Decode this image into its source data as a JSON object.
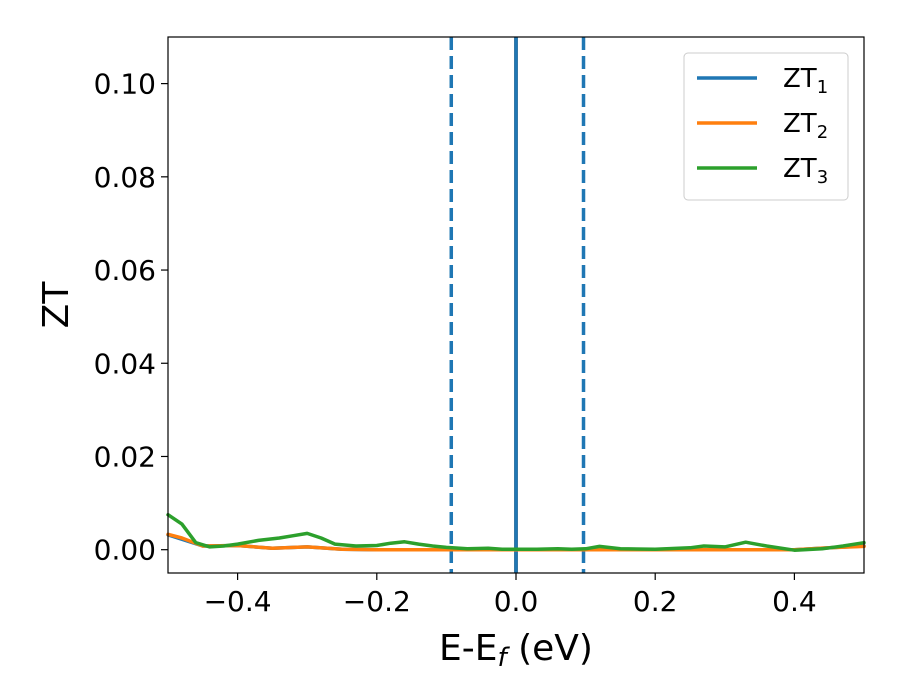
{
  "chart_data": {
    "type": "line",
    "xlabel": "E-E",
    "xlabel_sub": "f",
    "xlabel_unit": " (eV)",
    "ylabel": "ZT",
    "xlim": [
      -0.5,
      0.5
    ],
    "ylim": [
      -0.005,
      0.11
    ],
    "x_ticks": [
      -0.4,
      -0.2,
      0.0,
      0.2,
      0.4
    ],
    "x_tick_labels": [
      "−0.4",
      "−0.2",
      "0.0",
      "0.2",
      "0.4"
    ],
    "y_ticks": [
      0.0,
      0.02,
      0.04,
      0.06,
      0.08,
      0.1
    ],
    "y_tick_labels": [
      "0.00",
      "0.02",
      "0.04",
      "0.06",
      "0.08",
      "0.10"
    ],
    "grid": false,
    "legend_position": "top-right",
    "vertical_lines": [
      {
        "x": -0.093,
        "style": "dashed",
        "color": "#1f77b4"
      },
      {
        "x": 0.0,
        "style": "solid",
        "color": "#000000"
      },
      {
        "x": 0.0,
        "style": "solid",
        "color": "#1f77b4"
      },
      {
        "x": 0.097,
        "style": "dashed",
        "color": "#1f77b4"
      }
    ],
    "series": [
      {
        "name": "ZT",
        "subscript": "1",
        "color": "#1f77b4",
        "x": [
          -0.5,
          -0.45,
          -0.4,
          -0.35,
          -0.3,
          -0.25,
          -0.2,
          -0.15,
          -0.1,
          -0.05,
          0.0,
          0.05,
          0.1,
          0.15,
          0.2,
          0.25,
          0.3,
          0.35,
          0.4,
          0.45,
          0.5
        ],
        "y": [
          0.0032,
          0.0008,
          0.0009,
          0.0003,
          0.0006,
          0.0001,
          0.0,
          0.0,
          0.0,
          0.0,
          0.0,
          0.0,
          0.0,
          0.0,
          0.0,
          0.0,
          0.0,
          0.0,
          0.0,
          0.0004,
          0.0008
        ]
      },
      {
        "name": "ZT",
        "subscript": "2",
        "color": "#ff7f0e",
        "x": [
          -0.5,
          -0.48,
          -0.45,
          -0.4,
          -0.35,
          -0.3,
          -0.25,
          -0.2,
          -0.15,
          -0.1,
          -0.05,
          0.0,
          0.05,
          0.1,
          0.15,
          0.2,
          0.25,
          0.3,
          0.35,
          0.4,
          0.45,
          0.5
        ],
        "y": [
          0.0033,
          0.0025,
          0.0008,
          0.0009,
          0.0003,
          0.0006,
          0.0001,
          0.0,
          0.0,
          0.0,
          0.0,
          0.0,
          0.0,
          0.0,
          0.0,
          0.0,
          0.0,
          0.0,
          0.0,
          0.0,
          0.0004,
          0.0007
        ]
      },
      {
        "name": "ZT",
        "subscript": "3",
        "color": "#2ca02c",
        "x": [
          -0.5,
          -0.48,
          -0.46,
          -0.44,
          -0.42,
          -0.4,
          -0.37,
          -0.34,
          -0.32,
          -0.3,
          -0.28,
          -0.26,
          -0.23,
          -0.2,
          -0.18,
          -0.16,
          -0.14,
          -0.12,
          -0.1,
          -0.07,
          -0.04,
          -0.02,
          0.0,
          0.03,
          0.06,
          0.08,
          0.1,
          0.12,
          0.15,
          0.2,
          0.25,
          0.27,
          0.3,
          0.33,
          0.36,
          0.4,
          0.44,
          0.47,
          0.5
        ],
        "y": [
          0.0075,
          0.0055,
          0.0015,
          0.0006,
          0.0008,
          0.0012,
          0.002,
          0.0025,
          0.003,
          0.0035,
          0.0025,
          0.0012,
          0.0008,
          0.0009,
          0.0014,
          0.0017,
          0.0012,
          0.0008,
          0.0005,
          0.0002,
          0.0003,
          0.0001,
          0.0001,
          0.0001,
          0.0002,
          0.0001,
          0.0002,
          0.0007,
          0.0002,
          0.0001,
          0.0004,
          0.0008,
          0.0006,
          0.0016,
          0.0008,
          -0.0001,
          0.0002,
          0.0008,
          0.0015
        ]
      }
    ]
  }
}
